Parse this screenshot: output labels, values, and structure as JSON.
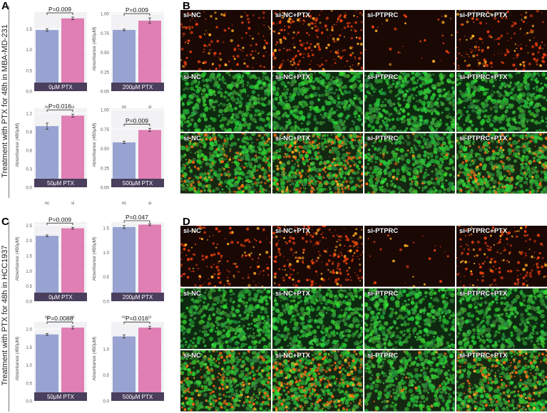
{
  "panels": {
    "A": "A",
    "B": "B",
    "C": "C",
    "D": "D"
  },
  "row_labels": {
    "top": "Treatment with PTX for 48h in MBA-MD-231",
    "bottom": "Treatment with PTX for 48h in HCC1937"
  },
  "colors": {
    "nc_bar": "#98a3d2",
    "si_bar": "#e07fb4",
    "band": "#4a3f5c",
    "red_fluor": "#ff5a14",
    "green_fluor": "#3ec04a"
  },
  "chart_data": [
    {
      "type": "bar",
      "panel": "A",
      "label": "0μM PTX",
      "categories": [
        "nc",
        "si"
      ],
      "values": [
        1.47,
        1.75
      ],
      "errors": [
        0.03,
        0.03
      ],
      "ylim": [
        0,
        1.9
      ],
      "yticks": [
        "0.0",
        "0.5",
        "1.0",
        "1.5"
      ],
      "ytick_values": [
        0,
        0.5,
        1.0,
        1.5
      ],
      "ylabel": "",
      "pvalue": "P=0.009"
    },
    {
      "type": "bar",
      "panel": "A",
      "label": "200μM PTX",
      "categories": [
        "nc",
        "si"
      ],
      "values": [
        0.79,
        0.91
      ],
      "errors": [
        0.01,
        0.035
      ],
      "ylim": [
        0,
        1.02
      ],
      "yticks": [
        "0.00",
        "0.25",
        "0.50",
        "0.75",
        "1.00"
      ],
      "ytick_values": [
        0,
        0.25,
        0.5,
        0.75,
        1.0
      ],
      "ylabel": "Absorbance (450μM)",
      "pvalue": "P=0.009"
    },
    {
      "type": "bar",
      "panel": "A",
      "label": "50μM PTX",
      "categories": [
        "nc",
        "si"
      ],
      "values": [
        0.99,
        1.16
      ],
      "errors": [
        0.05,
        0.025
      ],
      "ylim": [
        0,
        1.28
      ],
      "yticks": [
        "0.0",
        "0.3",
        "0.6",
        "0.9",
        "1.2"
      ],
      "ytick_values": [
        0,
        0.3,
        0.6,
        0.9,
        1.2
      ],
      "ylabel": "Absorbance (450μM)",
      "pvalue": "P=0.016"
    },
    {
      "type": "bar",
      "panel": "A",
      "label": "500μM PTX",
      "categories": [
        "nc",
        "si"
      ],
      "values": [
        0.58,
        0.74
      ],
      "errors": [
        0.015,
        0.02
      ],
      "ylim": [
        0,
        1.02
      ],
      "yticks": [
        "0.00",
        "0.25",
        "0.50",
        "0.75",
        "1.00"
      ],
      "ytick_values": [
        0,
        0.25,
        0.5,
        0.75,
        1.0
      ],
      "ylabel": "Absorbance (450μM)",
      "pvalue": "P=0.009"
    },
    {
      "type": "bar",
      "panel": "C",
      "label": "0μM PTX",
      "categories": [
        "nc",
        "si"
      ],
      "values": [
        2.15,
        2.4
      ],
      "errors": [
        0.03,
        0.03
      ],
      "ylim": [
        0,
        2.6
      ],
      "yticks": [
        "0.0",
        "0.5",
        "1.0",
        "1.5",
        "2.0",
        "2.5"
      ],
      "ytick_values": [
        0,
        0.5,
        1.0,
        1.5,
        2.0,
        2.5
      ],
      "ylabel": "Absorbance (450μM)",
      "pvalue": "P=0.009"
    },
    {
      "type": "bar",
      "panel": "C",
      "label": "200μM PTX",
      "categories": [
        "nc",
        "si"
      ],
      "values": [
        1.52,
        1.57
      ],
      "errors": [
        0.03,
        0.02
      ],
      "ylim": [
        0,
        1.62
      ],
      "yticks": [
        "0.0",
        "0.5",
        "1.0",
        "1.5"
      ],
      "ytick_values": [
        0,
        0.5,
        1.0,
        1.5
      ],
      "ylabel": "Absorbance (450μM)",
      "pvalue": "P=0.047"
    },
    {
      "type": "bar",
      "panel": "C",
      "label": "50μM PTX",
      "categories": [
        "nc",
        "si"
      ],
      "values": [
        1.85,
        2.04
      ],
      "errors": [
        0.025,
        0.04
      ],
      "ylim": [
        0,
        2.2
      ],
      "yticks": [
        "0.0",
        "0.5",
        "1.0",
        "1.5",
        "2.0"
      ],
      "ytick_values": [
        0,
        0.5,
        1.0,
        1.5,
        2.0
      ],
      "ylabel": "Absorbance (450μM)",
      "pvalue": "P=0.0088"
    },
    {
      "type": "bar",
      "panel": "C",
      "label": "500μM PTX",
      "categories": [
        "nc",
        "si"
      ],
      "values": [
        1.24,
        1.41
      ],
      "errors": [
        0.03,
        0.025
      ],
      "ylim": [
        0,
        1.52
      ],
      "yticks": [
        "0.0",
        "0.5",
        "1.0"
      ],
      "ytick_values": [
        0,
        0.5,
        1.0
      ],
      "ylabel": "Absorbance (450μM)",
      "pvalue": "P=0.016"
    }
  ],
  "micrographs": {
    "columns": [
      "si-NC",
      "si-NC+PTX",
      "si-PTPRC",
      "si-PTPRC+PTX"
    ],
    "rows": [
      "red",
      "green",
      "merge"
    ],
    "B_red_density": [
      0.55,
      0.9,
      0.12,
      0.65
    ],
    "D_red_density": [
      0.6,
      1.0,
      0.1,
      0.75
    ]
  }
}
